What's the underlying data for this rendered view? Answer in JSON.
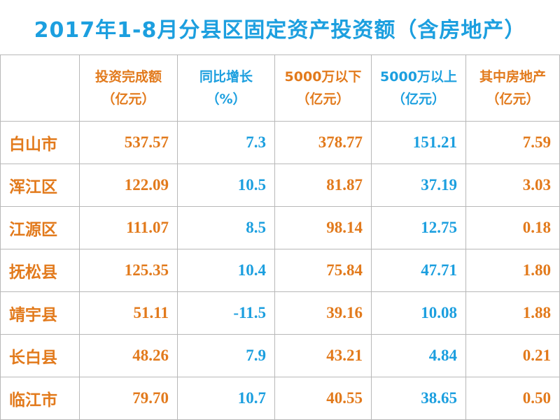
{
  "title": "2017年1-8月分县区固定资产投资额（含房地产）",
  "table": {
    "header": [
      [
        "投资完成额",
        "（亿元）"
      ],
      [
        "同比增长",
        "（%）"
      ],
      [
        "5000万以下",
        "（亿元）"
      ],
      [
        "5000万以上",
        "（亿元）"
      ],
      [
        "其中房地产",
        "（亿元）"
      ]
    ],
    "rows": [
      [
        "白山市",
        "537.57",
        "7.3",
        "378.77",
        "151.21",
        "7.59"
      ],
      [
        "浑江区",
        "122.09",
        "10.5",
        "81.87",
        "37.19",
        "3.03"
      ],
      [
        "江源区",
        "111.07",
        "8.5",
        "98.14",
        "12.75",
        "0.18"
      ],
      [
        "抚松县",
        "125.35",
        "10.4",
        "75.84",
        "47.71",
        "1.80"
      ],
      [
        "靖宇县",
        "51.11",
        "-11.5",
        "39.16",
        "10.08",
        "1.88"
      ],
      [
        "长白县",
        "48.26",
        "7.9",
        "43.21",
        "4.84",
        "0.21"
      ],
      [
        "临江市",
        "79.70",
        "10.7",
        "40.55",
        "38.65",
        "0.50"
      ]
    ]
  }
}
